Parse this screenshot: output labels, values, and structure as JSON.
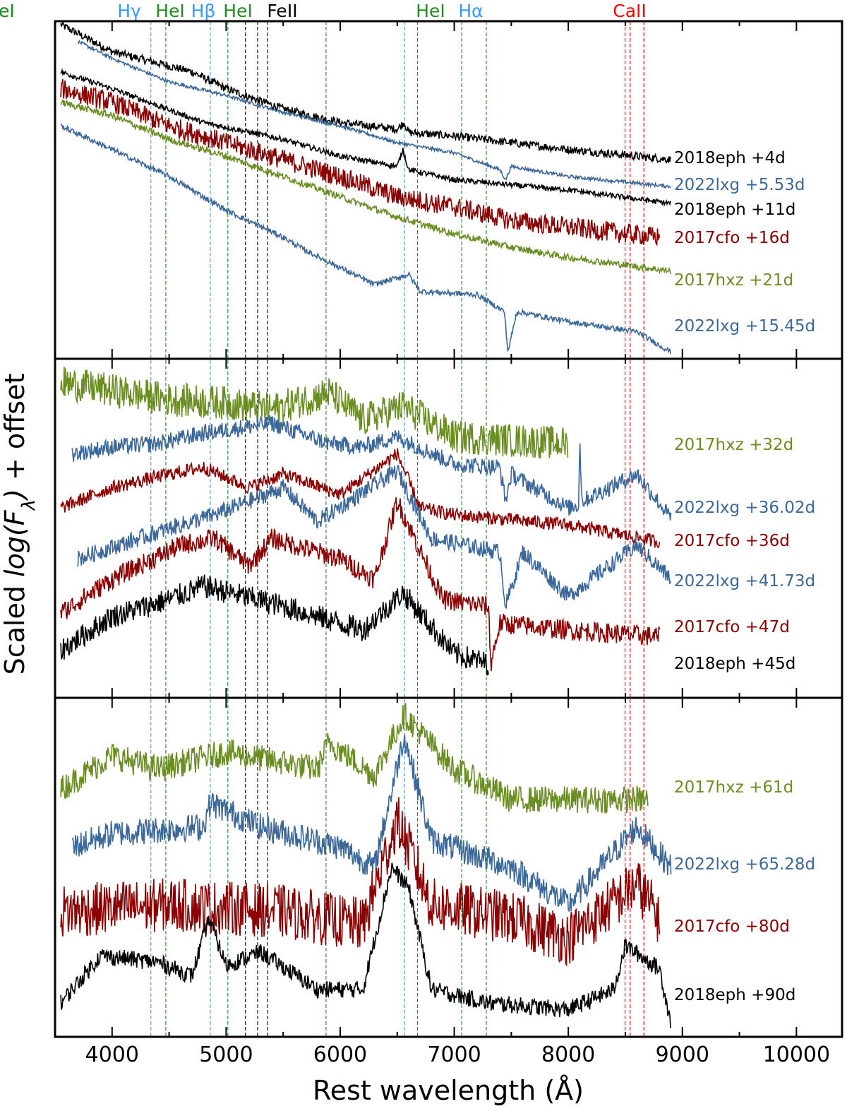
{
  "chart_data": {
    "type": "line",
    "xlabel": "Rest wavelength (Å)",
    "ylabel_prefix": "Scaled ",
    "ylabel_italic": "log(F",
    "ylabel_sub": "λ",
    "ylabel_close": ")",
    "ylabel_suffix": " + offset",
    "xlim": [
      3500,
      10400
    ],
    "xticks": [
      4000,
      5000,
      6000,
      7000,
      8000,
      9000,
      10000
    ],
    "xtick_labels": [
      "4000",
      "5000",
      "6000",
      "7000",
      "8000",
      "9000",
      "10000"
    ],
    "ylim": [
      0,
      100
    ],
    "y_units": "arbitrary scaled log flux + offset (per panel)",
    "colors": {
      "2018eph": "#000000",
      "2022lxg": "#3b6899",
      "2017cfo": "#8b0000",
      "2017hxz": "#6b8e23"
    },
    "lines": [
      {
        "label": "Hγ",
        "wavelength": 4340,
        "color": "#3399ff"
      },
      {
        "label": "HeI",
        "wavelength": 4471,
        "color": "#228b22"
      },
      {
        "label": "Hβ",
        "wavelength": 4861,
        "color": "#3399ff"
      },
      {
        "label": "HeI",
        "wavelength": 5015,
        "color": "#228b22"
      },
      {
        "label": "FeII",
        "wavelength": 5169,
        "color": "#000000"
      },
      {
        "label": "",
        "wavelength": 5276,
        "color": "#000000"
      },
      {
        "label": "",
        "wavelength": 5363,
        "color": "#000000"
      },
      {
        "label": "HeI",
        "wavelength": 5876,
        "color": "#228b22"
      },
      {
        "label": "Hα",
        "wavelength": 6563,
        "color": "#3399ff"
      },
      {
        "label": "HeI",
        "wavelength": 6678,
        "color": "#228b22"
      },
      {
        "label": "HeI",
        "wavelength": 7065,
        "color": "#228b22"
      },
      {
        "label": "",
        "wavelength": 7281,
        "color": "#228b22"
      },
      {
        "label": "CaII",
        "wavelength": 8498,
        "color": "#ff0000"
      },
      {
        "label": "",
        "wavelength": 8542,
        "color": "#ff0000"
      },
      {
        "label": "",
        "wavelength": 8662,
        "color": "#ff0000"
      }
    ],
    "panels": [
      {
        "spectra": [
          {
            "sn": "2018eph",
            "label": "2018eph +4d",
            "noise": 1.2,
            "points": [
              [
                3550,
                99
              ],
              [
                4000,
                91
              ],
              [
                4700,
                85
              ],
              [
                5000,
                80
              ],
              [
                5500,
                74
              ],
              [
                6000,
                70
              ],
              [
                6500,
                68
              ],
              [
                6560,
                70
              ],
              [
                6600,
                67
              ],
              [
                7000,
                66
              ],
              [
                7500,
                64
              ],
              [
                8000,
                62
              ],
              [
                8900,
                59
              ]
            ]
          },
          {
            "sn": "2022lxg",
            "label": "2022lxg +5.53d",
            "noise": 0.5,
            "points": [
              [
                3700,
                94
              ],
              [
                4000,
                89
              ],
              [
                4500,
                82
              ],
              [
                5000,
                78
              ],
              [
                5500,
                73
              ],
              [
                6000,
                69
              ],
              [
                6500,
                64
              ],
              [
                7000,
                61
              ],
              [
                7400,
                56
              ],
              [
                7450,
                53
              ],
              [
                7500,
                57
              ],
              [
                8000,
                54
              ],
              [
                8900,
                51
              ]
            ]
          },
          {
            "sn": "2018eph",
            "label": "2018eph +11d",
            "noise": 0.8,
            "points": [
              [
                3550,
                85
              ],
              [
                4000,
                80
              ],
              [
                4800,
                70
              ],
              [
                5500,
                65
              ],
              [
                6000,
                60
              ],
              [
                6500,
                57
              ],
              [
                6550,
                62
              ],
              [
                6600,
                56
              ],
              [
                7000,
                53
              ],
              [
                8000,
                50
              ],
              [
                8900,
                46
              ]
            ]
          },
          {
            "sn": "2017cfo",
            "label": "2017cfo +16d",
            "noise": 3,
            "points": [
              [
                3550,
                80
              ],
              [
                4000,
                76
              ],
              [
                4500,
                69
              ],
              [
                5000,
                64
              ],
              [
                5500,
                59
              ],
              [
                6000,
                54
              ],
              [
                6500,
                48
              ],
              [
                7000,
                45
              ],
              [
                7500,
                41
              ],
              [
                8000,
                39
              ],
              [
                8800,
                36
              ]
            ]
          },
          {
            "sn": "2017hxz",
            "label": "2017hxz +21d",
            "noise": 1,
            "points": [
              [
                3550,
                76
              ],
              [
                4000,
                72
              ],
              [
                4500,
                65
              ],
              [
                5000,
                60
              ],
              [
                5500,
                54
              ],
              [
                6000,
                48
              ],
              [
                6500,
                42
              ],
              [
                7000,
                37
              ],
              [
                7500,
                33
              ],
              [
                8000,
                30
              ],
              [
                8900,
                26
              ]
            ]
          },
          {
            "sn": "2022lxg",
            "label": "2022lxg +15.45d",
            "noise": 0.8,
            "points": [
              [
                3550,
                69
              ],
              [
                4000,
                62
              ],
              [
                4500,
                54
              ],
              [
                5000,
                44
              ],
              [
                5500,
                36
              ],
              [
                5700,
                32
              ],
              [
                6000,
                27
              ],
              [
                6300,
                22
              ],
              [
                6600,
                25
              ],
              [
                6700,
                20
              ],
              [
                7200,
                19
              ],
              [
                7440,
                14
              ],
              [
                7470,
                2
              ],
              [
                7550,
                14
              ],
              [
                8000,
                11
              ],
              [
                8600,
                8
              ],
              [
                8900,
                2
              ]
            ]
          }
        ]
      },
      {
        "spectra": [
          {
            "sn": "2017hxz",
            "label": "2017hxz +32d",
            "noise": 5,
            "points": [
              [
                3550,
                93
              ],
              [
                4500,
                88
              ],
              [
                5000,
                87
              ],
              [
                5400,
                85
              ],
              [
                5900,
                90
              ],
              [
                6200,
                82
              ],
              [
                6550,
                86
              ],
              [
                7000,
                77
              ],
              [
                8000,
                75
              ]
            ]
          },
          {
            "sn": "2022lxg",
            "label": "2022lxg +36.02d",
            "noise": 2.5,
            "points": [
              [
                3650,
                72
              ],
              [
                4000,
                74
              ],
              [
                4400,
                75
              ],
              [
                4800,
                78
              ],
              [
                5400,
                81
              ],
              [
                5900,
                75
              ],
              [
                6200,
                74
              ],
              [
                6500,
                77
              ],
              [
                7000,
                69
              ],
              [
                7400,
                68
              ],
              [
                7450,
                58
              ],
              [
                7500,
                66
              ],
              [
                8000,
                56
              ],
              [
                8090,
                57
              ],
              [
                8100,
                76
              ],
              [
                8120,
                58
              ],
              [
                8600,
                66
              ],
              [
                8900,
                53
              ]
            ]
          },
          {
            "sn": "2017cfo",
            "label": "2017cfo +36d",
            "noise": 2,
            "points": [
              [
                3550,
                56
              ],
              [
                4000,
                62
              ],
              [
                4500,
                66
              ],
              [
                4800,
                68
              ],
              [
                5200,
                62
              ],
              [
                5500,
                66
              ],
              [
                6000,
                60
              ],
              [
                6500,
                72
              ],
              [
                6700,
                56
              ],
              [
                7000,
                54
              ],
              [
                8000,
                51
              ],
              [
                8800,
                46
              ]
            ]
          },
          {
            "sn": "2022lxg",
            "label": "2022lxg +41.73d",
            "noise": 2.5,
            "points": [
              [
                3700,
                41
              ],
              [
                4500,
                50
              ],
              [
                4900,
                54
              ],
              [
                5500,
                62
              ],
              [
                5800,
                52
              ],
              [
                6500,
                67
              ],
              [
                6800,
                47
              ],
              [
                7400,
                43
              ],
              [
                7450,
                27
              ],
              [
                7600,
                43
              ],
              [
                8000,
                30
              ],
              [
                8600,
                45
              ],
              [
                8900,
                35
              ]
            ]
          },
          {
            "sn": "2017cfo",
            "label": "2017cfo +47d",
            "noise": 3,
            "points": [
              [
                3550,
                25
              ],
              [
                4000,
                35
              ],
              [
                4600,
                45
              ],
              [
                4900,
                47
              ],
              [
                5200,
                39
              ],
              [
                5400,
                47
              ],
              [
                6000,
                41
              ],
              [
                6300,
                35
              ],
              [
                6500,
                58
              ],
              [
                6900,
                29
              ],
              [
                7300,
                27
              ],
              [
                7320,
                10
              ],
              [
                7400,
                22
              ],
              [
                8000,
                20
              ],
              [
                8800,
                18
              ]
            ]
          },
          {
            "sn": "2018eph",
            "label": "2018eph +45d",
            "noise": 3.5,
            "points": [
              [
                3550,
                14
              ],
              [
                4000,
                24
              ],
              [
                4500,
                29
              ],
              [
                4800,
                33
              ],
              [
                5500,
                27
              ],
              [
                6200,
                20
              ],
              [
                6550,
                31
              ],
              [
                7000,
                13
              ],
              [
                7300,
                10
              ]
            ]
          }
        ]
      },
      {
        "spectra": [
          {
            "sn": "2017hxz",
            "label": "2017hxz +61d",
            "noise": 4,
            "points": [
              [
                3550,
                73
              ],
              [
                4000,
                83
              ],
              [
                4400,
                79
              ],
              [
                5000,
                84
              ],
              [
                5800,
                79
              ],
              [
                5900,
                87
              ],
              [
                6300,
                77
              ],
              [
                6560,
                95
              ],
              [
                7000,
                79
              ],
              [
                7500,
                70
              ],
              [
                8200,
                70
              ],
              [
                8700,
                70
              ]
            ]
          },
          {
            "sn": "2022lxg",
            "label": "2022lxg +65.28d",
            "noise": 4,
            "points": [
              [
                3650,
                56
              ],
              [
                4000,
                60
              ],
              [
                4800,
                62
              ],
              [
                4860,
                69
              ],
              [
                5300,
                62
              ],
              [
                6000,
                56
              ],
              [
                6300,
                50
              ],
              [
                6560,
                89
              ],
              [
                6800,
                58
              ],
              [
                7500,
                50
              ],
              [
                8000,
                39
              ],
              [
                8600,
                62
              ],
              [
                8900,
                50
              ]
            ]
          },
          {
            "sn": "2017cfo",
            "label": "2017cfo +80d",
            "noise": 8,
            "points": [
              [
                3550,
                37
              ],
              [
                4500,
                39
              ],
              [
                5500,
                37
              ],
              [
                6200,
                33
              ],
              [
                6500,
                64
              ],
              [
                6800,
                39
              ],
              [
                7500,
                35
              ],
              [
                8000,
                29
              ],
              [
                8600,
                45
              ],
              [
                8800,
                35
              ]
            ]
          },
          {
            "sn": "2018eph",
            "label": "2018eph +90d",
            "noise": 2.5,
            "points": [
              [
                3550,
                10
              ],
              [
                3900,
                24
              ],
              [
                4400,
                22
              ],
              [
                4700,
                18
              ],
              [
                4850,
                35
              ],
              [
                5000,
                21
              ],
              [
                5300,
                25
              ],
              [
                5800,
                14
              ],
              [
                6200,
                14
              ],
              [
                6450,
                50
              ],
              [
                6600,
                44
              ],
              [
                6800,
                14
              ],
              [
                7300,
                10
              ],
              [
                8000,
                8
              ],
              [
                8400,
                14
              ],
              [
                8500,
                27
              ],
              [
                8800,
                20
              ],
              [
                8900,
                4
              ]
            ]
          }
        ]
      }
    ]
  }
}
